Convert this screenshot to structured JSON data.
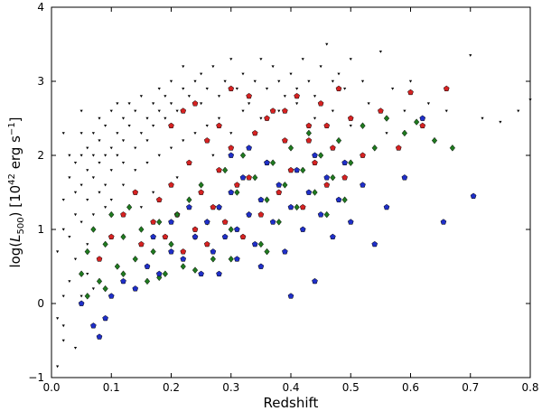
{
  "chart_data": {
    "type": "scatter",
    "title": "",
    "xlabel": "Redshift",
    "ylabel": "log(L500) [10^42 erg s^-1]",
    "ylabel_parts": {
      "prefix": "log(",
      "L": "L",
      "L_sub": "500",
      "mid": ") [10",
      "exp42": "42",
      "unit": " erg s",
      "exp_m1": "−1",
      "suffix": "]"
    },
    "xlim": [
      0.0,
      0.8
    ],
    "ylim": [
      -1,
      4
    ],
    "xticks": [
      "0.0",
      "0.1",
      "0.2",
      "0.3",
      "0.4",
      "0.5",
      "0.6",
      "0.7",
      "0.8"
    ],
    "yticks": [
      "−1",
      "0",
      "1",
      "2",
      "3",
      "4"
    ],
    "grid": false,
    "legend": "none",
    "colors": {
      "black": "#000000",
      "red": "#d62222",
      "green": "#1f7a1f",
      "blue": "#1f2fc8",
      "marker_edge": "#000000"
    },
    "series": [
      {
        "color": "black",
        "marker": "triangle-down-small",
        "points": [
          [
            0.01,
            -0.85
          ],
          [
            0.02,
            -0.5
          ],
          [
            0.01,
            -0.2
          ],
          [
            0.02,
            0.1
          ],
          [
            0.03,
            0.3
          ],
          [
            0.01,
            0.7
          ],
          [
            0.02,
            1.0
          ],
          [
            0.02,
            1.4
          ],
          [
            0.03,
            1.7
          ],
          [
            0.03,
            2.0
          ],
          [
            0.02,
            2.3
          ],
          [
            0.04,
            1.2
          ],
          [
            0.04,
            1.5
          ],
          [
            0.04,
            1.9
          ],
          [
            0.05,
            1.6
          ],
          [
            0.05,
            2.0
          ],
          [
            0.05,
            2.3
          ],
          [
            0.05,
            2.6
          ],
          [
            0.06,
            1.8
          ],
          [
            0.06,
            2.1
          ],
          [
            0.06,
            1.4
          ],
          [
            0.07,
            2.0
          ],
          [
            0.07,
            2.3
          ],
          [
            0.07,
            1.7
          ],
          [
            0.08,
            1.9
          ],
          [
            0.08,
            2.2
          ],
          [
            0.08,
            2.5
          ],
          [
            0.09,
            2.0
          ],
          [
            0.09,
            2.4
          ],
          [
            0.09,
            1.6
          ],
          [
            0.1,
            2.1
          ],
          [
            0.1,
            2.6
          ],
          [
            0.1,
            1.8
          ],
          [
            0.11,
            2.3
          ],
          [
            0.11,
            2.0
          ],
          [
            0.11,
            2.7
          ],
          [
            0.12,
            2.2
          ],
          [
            0.12,
            2.5
          ],
          [
            0.12,
            1.9
          ],
          [
            0.13,
            2.4
          ],
          [
            0.13,
            2.7
          ],
          [
            0.14,
            2.1
          ],
          [
            0.14,
            2.6
          ],
          [
            0.15,
            2.3
          ],
          [
            0.15,
            2.8
          ],
          [
            0.16,
            2.5
          ],
          [
            0.16,
            2.2
          ],
          [
            0.17,
            2.7
          ],
          [
            0.17,
            2.4
          ],
          [
            0.18,
            2.6
          ],
          [
            0.18,
            2.9
          ],
          [
            0.19,
            2.5
          ],
          [
            0.19,
            2.8
          ],
          [
            0.2,
            2.7
          ],
          [
            0.2,
            3.0
          ],
          [
            0.21,
            2.6
          ],
          [
            0.22,
            2.9
          ],
          [
            0.22,
            3.2
          ],
          [
            0.23,
            2.8
          ],
          [
            0.24,
            3.0
          ],
          [
            0.25,
            2.7
          ],
          [
            0.25,
            3.1
          ],
          [
            0.26,
            2.9
          ],
          [
            0.27,
            3.2
          ],
          [
            0.28,
            2.8
          ],
          [
            0.29,
            3.0
          ],
          [
            0.3,
            3.3
          ],
          [
            0.31,
            2.9
          ],
          [
            0.32,
            3.1
          ],
          [
            0.33,
            2.7
          ],
          [
            0.34,
            3.0
          ],
          [
            0.35,
            3.3
          ],
          [
            0.36,
            2.9
          ],
          [
            0.37,
            3.2
          ],
          [
            0.38,
            3.0
          ],
          [
            0.39,
            2.8
          ],
          [
            0.4,
            3.1
          ],
          [
            0.41,
            2.9
          ],
          [
            0.42,
            3.3
          ],
          [
            0.43,
            3.0
          ],
          [
            0.44,
            2.8
          ],
          [
            0.45,
            3.2
          ],
          [
            0.46,
            3.5
          ],
          [
            0.47,
            3.0
          ],
          [
            0.48,
            3.1
          ],
          [
            0.49,
            2.9
          ],
          [
            0.5,
            3.3
          ],
          [
            0.52,
            3.0
          ],
          [
            0.55,
            3.4
          ],
          [
            0.57,
            2.9
          ],
          [
            0.6,
            3.0
          ],
          [
            0.63,
            2.7
          ],
          [
            0.66,
            2.6
          ],
          [
            0.7,
            3.35
          ],
          [
            0.72,
            2.5
          ],
          [
            0.75,
            2.45
          ],
          [
            0.78,
            2.6
          ],
          [
            0.8,
            2.75
          ],
          [
            0.03,
            0.9
          ],
          [
            0.04,
            0.6
          ],
          [
            0.05,
            1.1
          ],
          [
            0.06,
            0.8
          ],
          [
            0.07,
            1.2
          ],
          [
            0.08,
            1.5
          ],
          [
            0.09,
            1.3
          ],
          [
            0.1,
            1.4
          ],
          [
            0.12,
            1.6
          ],
          [
            0.14,
            1.8
          ],
          [
            0.16,
            1.9
          ],
          [
            0.18,
            2.0
          ],
          [
            0.2,
            2.1
          ],
          [
            0.22,
            2.2
          ],
          [
            0.24,
            2.3
          ],
          [
            0.26,
            2.4
          ],
          [
            0.28,
            2.5
          ],
          [
            0.3,
            2.3
          ],
          [
            0.32,
            2.6
          ],
          [
            0.35,
            2.5
          ],
          [
            0.38,
            2.6
          ],
          [
            0.41,
            2.7
          ],
          [
            0.44,
            2.5
          ],
          [
            0.47,
            2.6
          ],
          [
            0.5,
            2.4
          ],
          [
            0.53,
            2.7
          ],
          [
            0.56,
            2.3
          ],
          [
            0.59,
            2.6
          ],
          [
            0.06,
            0.4
          ],
          [
            0.05,
            0.1
          ],
          [
            0.02,
            -0.3
          ],
          [
            0.04,
            -0.6
          ],
          [
            0.07,
            0.2
          ],
          [
            0.15,
            1.3
          ],
          [
            0.17,
            1.5
          ],
          [
            0.21,
            1.7
          ],
          [
            0.23,
            1.9
          ],
          [
            0.27,
            2.0
          ]
        ]
      },
      {
        "color": "red",
        "marker": "pentagon",
        "points": [
          [
            0.08,
            0.6
          ],
          [
            0.1,
            0.9
          ],
          [
            0.12,
            1.2
          ],
          [
            0.14,
            1.5
          ],
          [
            0.15,
            0.8
          ],
          [
            0.17,
            1.1
          ],
          [
            0.18,
            1.4
          ],
          [
            0.19,
            0.9
          ],
          [
            0.2,
            1.6
          ],
          [
            0.21,
            1.2
          ],
          [
            0.22,
            0.7
          ],
          [
            0.23,
            1.9
          ],
          [
            0.24,
            1.0
          ],
          [
            0.25,
            1.5
          ],
          [
            0.26,
            0.8
          ],
          [
            0.27,
            1.3
          ],
          [
            0.28,
            1.8
          ],
          [
            0.29,
            1.1
          ],
          [
            0.3,
            2.1
          ],
          [
            0.31,
            1.6
          ],
          [
            0.32,
            0.9
          ],
          [
            0.33,
            1.7
          ],
          [
            0.34,
            2.3
          ],
          [
            0.35,
            1.2
          ],
          [
            0.36,
            1.9
          ],
          [
            0.37,
            2.6
          ],
          [
            0.38,
            1.5
          ],
          [
            0.39,
            2.2
          ],
          [
            0.4,
            1.8
          ],
          [
            0.41,
            2.8
          ],
          [
            0.42,
            1.3
          ],
          [
            0.43,
            2.4
          ],
          [
            0.44,
            1.9
          ],
          [
            0.45,
            2.7
          ],
          [
            0.46,
            1.6
          ],
          [
            0.47,
            2.1
          ],
          [
            0.48,
            2.9
          ],
          [
            0.49,
            1.7
          ],
          [
            0.5,
            2.5
          ],
          [
            0.52,
            2.0
          ],
          [
            0.55,
            2.6
          ],
          [
            0.58,
            2.1
          ],
          [
            0.6,
            2.85
          ],
          [
            0.62,
            2.4
          ],
          [
            0.66,
            2.9
          ],
          [
            0.2,
            2.4
          ],
          [
            0.22,
            2.6
          ],
          [
            0.24,
            2.7
          ],
          [
            0.26,
            2.2
          ],
          [
            0.28,
            2.4
          ],
          [
            0.3,
            2.9
          ],
          [
            0.33,
            2.8
          ],
          [
            0.36,
            2.5
          ],
          [
            0.39,
            2.6
          ],
          [
            0.43,
            2.2
          ],
          [
            0.46,
            2.4
          ]
        ]
      },
      {
        "color": "green",
        "marker": "diamond",
        "points": [
          [
            0.05,
            0.4
          ],
          [
            0.06,
            0.7
          ],
          [
            0.07,
            1.0
          ],
          [
            0.08,
            0.3
          ],
          [
            0.09,
            0.8
          ],
          [
            0.1,
            1.2
          ],
          [
            0.11,
            0.5
          ],
          [
            0.12,
            0.9
          ],
          [
            0.13,
            1.3
          ],
          [
            0.14,
            0.6
          ],
          [
            0.15,
            1.0
          ],
          [
            0.16,
            0.3
          ],
          [
            0.17,
            0.7
          ],
          [
            0.18,
            1.1
          ],
          [
            0.19,
            0.4
          ],
          [
            0.2,
            0.8
          ],
          [
            0.21,
            1.2
          ],
          [
            0.22,
            0.5
          ],
          [
            0.23,
            1.4
          ],
          [
            0.24,
            0.9
          ],
          [
            0.25,
            1.6
          ],
          [
            0.26,
            1.1
          ],
          [
            0.27,
            0.6
          ],
          [
            0.28,
            1.3
          ],
          [
            0.29,
            1.8
          ],
          [
            0.3,
            1.0
          ],
          [
            0.31,
            1.5
          ],
          [
            0.32,
            2.0
          ],
          [
            0.33,
            1.2
          ],
          [
            0.34,
            1.7
          ],
          [
            0.35,
            0.8
          ],
          [
            0.36,
            1.4
          ],
          [
            0.37,
            1.9
          ],
          [
            0.38,
            1.1
          ],
          [
            0.39,
            1.6
          ],
          [
            0.4,
            2.1
          ],
          [
            0.41,
            1.3
          ],
          [
            0.42,
            1.8
          ],
          [
            0.43,
            2.3
          ],
          [
            0.44,
            1.5
          ],
          [
            0.45,
            2.0
          ],
          [
            0.46,
            1.2
          ],
          [
            0.47,
            1.7
          ],
          [
            0.48,
            2.2
          ],
          [
            0.49,
            1.4
          ],
          [
            0.5,
            1.9
          ],
          [
            0.52,
            2.4
          ],
          [
            0.54,
            2.1
          ],
          [
            0.56,
            2.5
          ],
          [
            0.59,
            2.3
          ],
          [
            0.61,
            2.45
          ],
          [
            0.64,
            2.2
          ],
          [
            0.67,
            2.1
          ],
          [
            0.06,
            0.1
          ],
          [
            0.09,
            0.2
          ],
          [
            0.12,
            0.4
          ],
          [
            0.18,
            0.35
          ],
          [
            0.24,
            0.45
          ],
          [
            0.3,
            0.6
          ],
          [
            0.36,
            0.7
          ]
        ]
      },
      {
        "color": "blue",
        "marker": "pentagon",
        "points": [
          [
            0.05,
            0.0
          ],
          [
            0.07,
            -0.3
          ],
          [
            0.08,
            -0.45
          ],
          [
            0.09,
            -0.2
          ],
          [
            0.1,
            0.1
          ],
          [
            0.12,
            0.3
          ],
          [
            0.14,
            0.2
          ],
          [
            0.16,
            0.5
          ],
          [
            0.18,
            0.4
          ],
          [
            0.2,
            0.7
          ],
          [
            0.22,
            0.6
          ],
          [
            0.24,
            0.9
          ],
          [
            0.25,
            0.4
          ],
          [
            0.26,
            1.1
          ],
          [
            0.27,
            0.7
          ],
          [
            0.28,
            1.3
          ],
          [
            0.29,
            0.9
          ],
          [
            0.3,
            1.5
          ],
          [
            0.31,
            1.0
          ],
          [
            0.32,
            1.7
          ],
          [
            0.33,
            1.2
          ],
          [
            0.34,
            0.8
          ],
          [
            0.35,
            1.4
          ],
          [
            0.36,
            1.9
          ],
          [
            0.37,
            1.1
          ],
          [
            0.38,
            1.6
          ],
          [
            0.39,
            0.7
          ],
          [
            0.4,
            1.3
          ],
          [
            0.41,
            1.8
          ],
          [
            0.42,
            1.0
          ],
          [
            0.43,
            1.5
          ],
          [
            0.44,
            2.0
          ],
          [
            0.45,
            1.2
          ],
          [
            0.46,
            1.7
          ],
          [
            0.47,
            0.9
          ],
          [
            0.48,
            1.4
          ],
          [
            0.49,
            1.9
          ],
          [
            0.5,
            1.1
          ],
          [
            0.52,
            1.6
          ],
          [
            0.54,
            0.8
          ],
          [
            0.56,
            1.3
          ],
          [
            0.59,
            1.7
          ],
          [
            0.62,
            2.5
          ],
          [
            0.655,
            1.1
          ],
          [
            0.705,
            1.45
          ],
          [
            0.3,
            2.0
          ],
          [
            0.33,
            2.1
          ],
          [
            0.28,
            0.4
          ],
          [
            0.31,
            0.6
          ],
          [
            0.35,
            0.5
          ],
          [
            0.4,
            0.1
          ],
          [
            0.44,
            0.3
          ],
          [
            0.2,
            1.1
          ],
          [
            0.23,
            1.3
          ],
          [
            0.17,
            0.9
          ]
        ]
      }
    ]
  }
}
